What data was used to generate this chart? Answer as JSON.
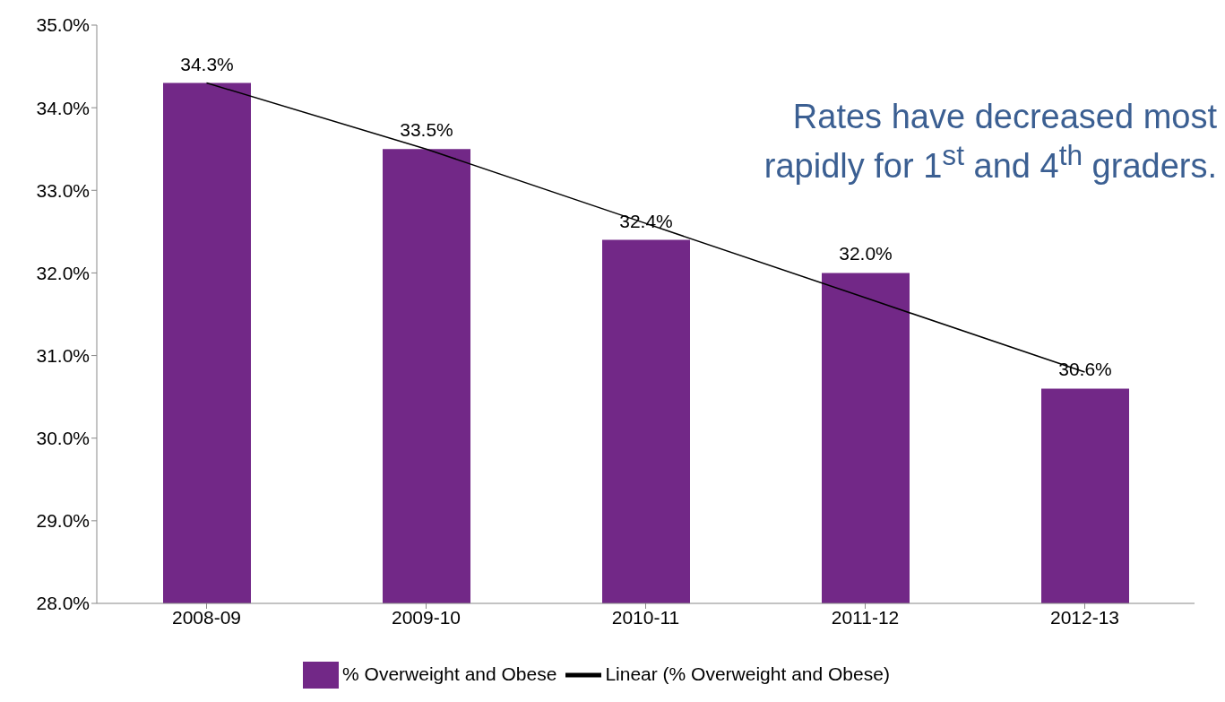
{
  "chart_data": {
    "type": "bar",
    "categories": [
      "2008-09",
      "2009-10",
      "2010-11",
      "2011-12",
      "2012-13"
    ],
    "series": [
      {
        "name": "% Overweight and Obese",
        "color": "#722887",
        "values": [
          34.3,
          33.5,
          32.4,
          32.0,
          30.6
        ],
        "value_labels": [
          "34.3%",
          "33.5%",
          "32.4%",
          "32.0%",
          "30.6%"
        ]
      },
      {
        "name": "Linear (% Overweight and Obese)",
        "type": "line",
        "color": "#000000",
        "values": [
          34.3,
          33.5,
          32.6,
          31.7,
          30.8
        ]
      }
    ],
    "ylim": [
      28,
      35
    ],
    "yticks": [
      {
        "value": 28,
        "label": "28.0%"
      },
      {
        "value": 29,
        "label": "29.0%"
      },
      {
        "value": 30,
        "label": "30.0%"
      },
      {
        "value": 31,
        "label": "31.0%"
      },
      {
        "value": 32,
        "label": "32.0%"
      },
      {
        "value": 33,
        "label": "33.0%"
      },
      {
        "value": 34,
        "label": "34.0%"
      },
      {
        "value": 35,
        "label": "35.0%"
      }
    ],
    "grid": false,
    "legend": "bottom",
    "marker": "none",
    "line_style": "solid",
    "annotations": [
      "Rates have decreased most rapidly for 1$^{st}$ and 4$^{th}$ graders."
    ]
  }
}
